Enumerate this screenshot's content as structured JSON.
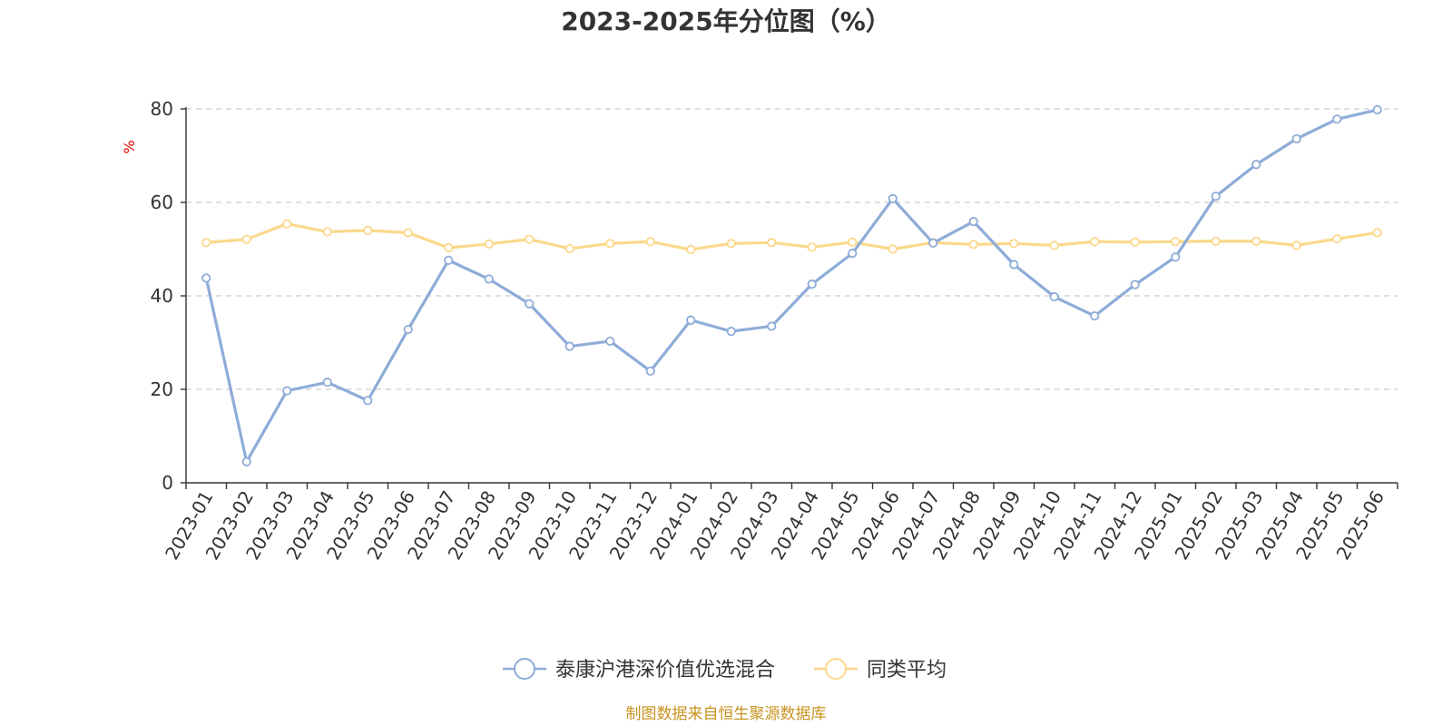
{
  "chart_data": {
    "type": "line",
    "title": "2023-2025年分位图（%）",
    "ylabel": "%",
    "ylim": [
      0,
      80
    ],
    "yticks": [
      0,
      20,
      40,
      60,
      80
    ],
    "grid": true,
    "legend": "bottom",
    "categories": [
      "2023-01",
      "2023-02",
      "2023-03",
      "2023-04",
      "2023-05",
      "2023-06",
      "2023-07",
      "2023-08",
      "2023-09",
      "2023-10",
      "2023-11",
      "2023-12",
      "2024-01",
      "2024-02",
      "2024-03",
      "2024-04",
      "2024-05",
      "2024-06",
      "2024-07",
      "2024-08",
      "2024-09",
      "2024-10",
      "2024-11",
      "2024-12",
      "2025-01",
      "2025-02",
      "2025-03",
      "2025-04",
      "2025-05",
      "2025-06"
    ],
    "series": [
      {
        "name": "泰康沪港深价值优选混合",
        "color": "#8eacd8",
        "values": [
          43.8,
          4.5,
          19.7,
          21.5,
          17.6,
          32.8,
          47.6,
          43.6,
          38.3,
          29.2,
          30.3,
          23.9,
          34.8,
          32.4,
          33.5,
          42.5,
          49.1,
          60.8,
          51.3,
          55.9,
          46.7,
          39.8,
          35.7,
          42.4,
          48.3,
          61.3,
          68.1,
          73.6,
          77.8,
          79.8
        ]
      },
      {
        "name": "同类平均",
        "color": "#fbd88b",
        "values": [
          51.4,
          52.1,
          55.4,
          53.7,
          54.0,
          53.5,
          50.3,
          51.1,
          52.1,
          50.1,
          51.2,
          51.6,
          49.9,
          51.2,
          51.4,
          50.4,
          51.5,
          50.0,
          51.4,
          51.0,
          51.2,
          50.8,
          51.6,
          51.5,
          51.6,
          51.7,
          51.7,
          50.8,
          52.2,
          53.5
        ]
      }
    ]
  },
  "footer": {
    "source": "制图数据来自恒生聚源数据库"
  }
}
